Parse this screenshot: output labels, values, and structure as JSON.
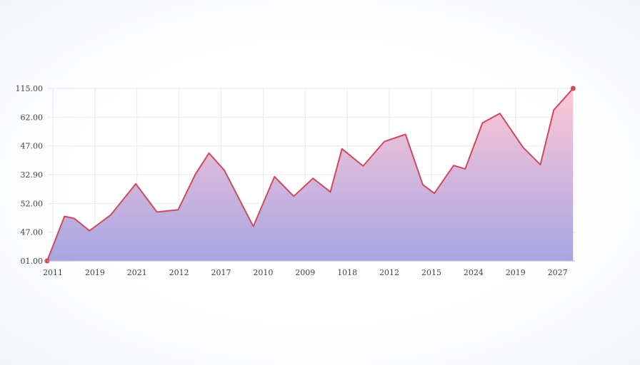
{
  "chart_data": {
    "type": "area",
    "title": "",
    "xlabel": "",
    "ylabel": "",
    "x_tick_labels": [
      "2011",
      "2019",
      "2021",
      "2012",
      "2017",
      "2010",
      "2009",
      "1018",
      "2012",
      "2015",
      "2024",
      "2019",
      "2027"
    ],
    "y_tick_labels": [
      "01.00",
      "47.00",
      "52.00",
      "32.90",
      "47.00",
      "62.00",
      "115.00"
    ],
    "y_tick_positions": [
      0,
      1,
      2,
      3,
      4,
      5,
      6
    ],
    "ylim": [
      0,
      6
    ],
    "xlim": [
      0,
      13.7
    ],
    "grid": true,
    "x": [
      0,
      0.45,
      0.7,
      1.1,
      1.65,
      2.3,
      2.85,
      3.4,
      3.85,
      4.2,
      4.6,
      5.35,
      5.9,
      6.4,
      6.9,
      7.35,
      7.65,
      8.2,
      8.75,
      9.3,
      9.75,
      10.05,
      10.55,
      10.85,
      11.3,
      11.75,
      12.35,
      12.8,
      13.15,
      13.65
    ],
    "values": [
      0,
      1.55,
      1.48,
      1.05,
      1.6,
      2.68,
      1.7,
      1.78,
      3.02,
      3.75,
      3.15,
      1.2,
      2.93,
      2.25,
      2.87,
      2.4,
      3.9,
      3.3,
      4.15,
      4.4,
      2.65,
      2.35,
      3.32,
      3.2,
      4.8,
      5.13,
      3.95,
      3.35,
      5.25,
      6.0
    ],
    "colors": {
      "line": "#d04a5c",
      "fill_top": "#ffc7d5",
      "fill_bottom": "#a7a6e3",
      "grid": "#e9e9ef",
      "axis": "#b8b8c8"
    }
  }
}
